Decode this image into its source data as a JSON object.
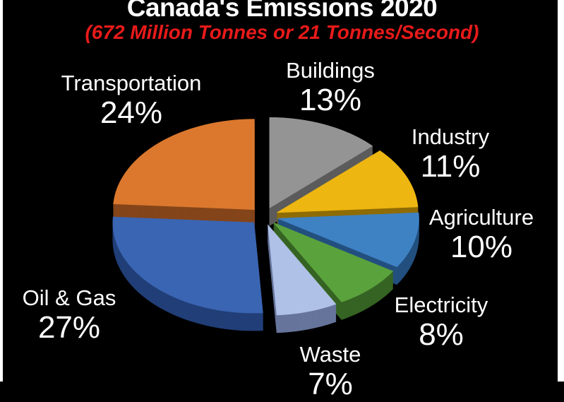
{
  "title": "Canada's Emissions 2020",
  "subtitle": "(672 Million Tonnes or 21 Tonnes/Second)",
  "colors": {
    "background": "#000000",
    "title_text": "#ffffff",
    "subtitle_text": "#e81a1a",
    "label_text": "#ffffff",
    "frame_border": "#ffffff"
  },
  "chart_data": {
    "type": "pie",
    "style": "3d-exploded",
    "title": "Canada's Emissions 2020",
    "subtitle": "(672 Million Tonnes or 21 Tonnes/Second)",
    "start_angle_deg_from_top": 0,
    "direction": "clockwise",
    "legend_position": "around-slices",
    "slices": [
      {
        "label": "Buildings",
        "value": 13,
        "color": "#949494",
        "side_color": "#5c5c5c"
      },
      {
        "label": "Industry",
        "value": 11,
        "color": "#edb611",
        "side_color": "#8f6c05"
      },
      {
        "label": "Agriculture",
        "value": 10,
        "color": "#3e82c4",
        "side_color": "#23507f"
      },
      {
        "label": "Electricity",
        "value": 8,
        "color": "#5aa23c",
        "side_color": "#366424"
      },
      {
        "label": "Waste",
        "value": 7,
        "color": "#afc1e6",
        "side_color": "#67759c"
      },
      {
        "label": "Oil & Gas",
        "value": 27,
        "color": "#3a65b2",
        "side_color": "#223f78"
      },
      {
        "label": "Transportation",
        "value": 24,
        "color": "#db782e",
        "side_color": "#85451a"
      }
    ]
  }
}
